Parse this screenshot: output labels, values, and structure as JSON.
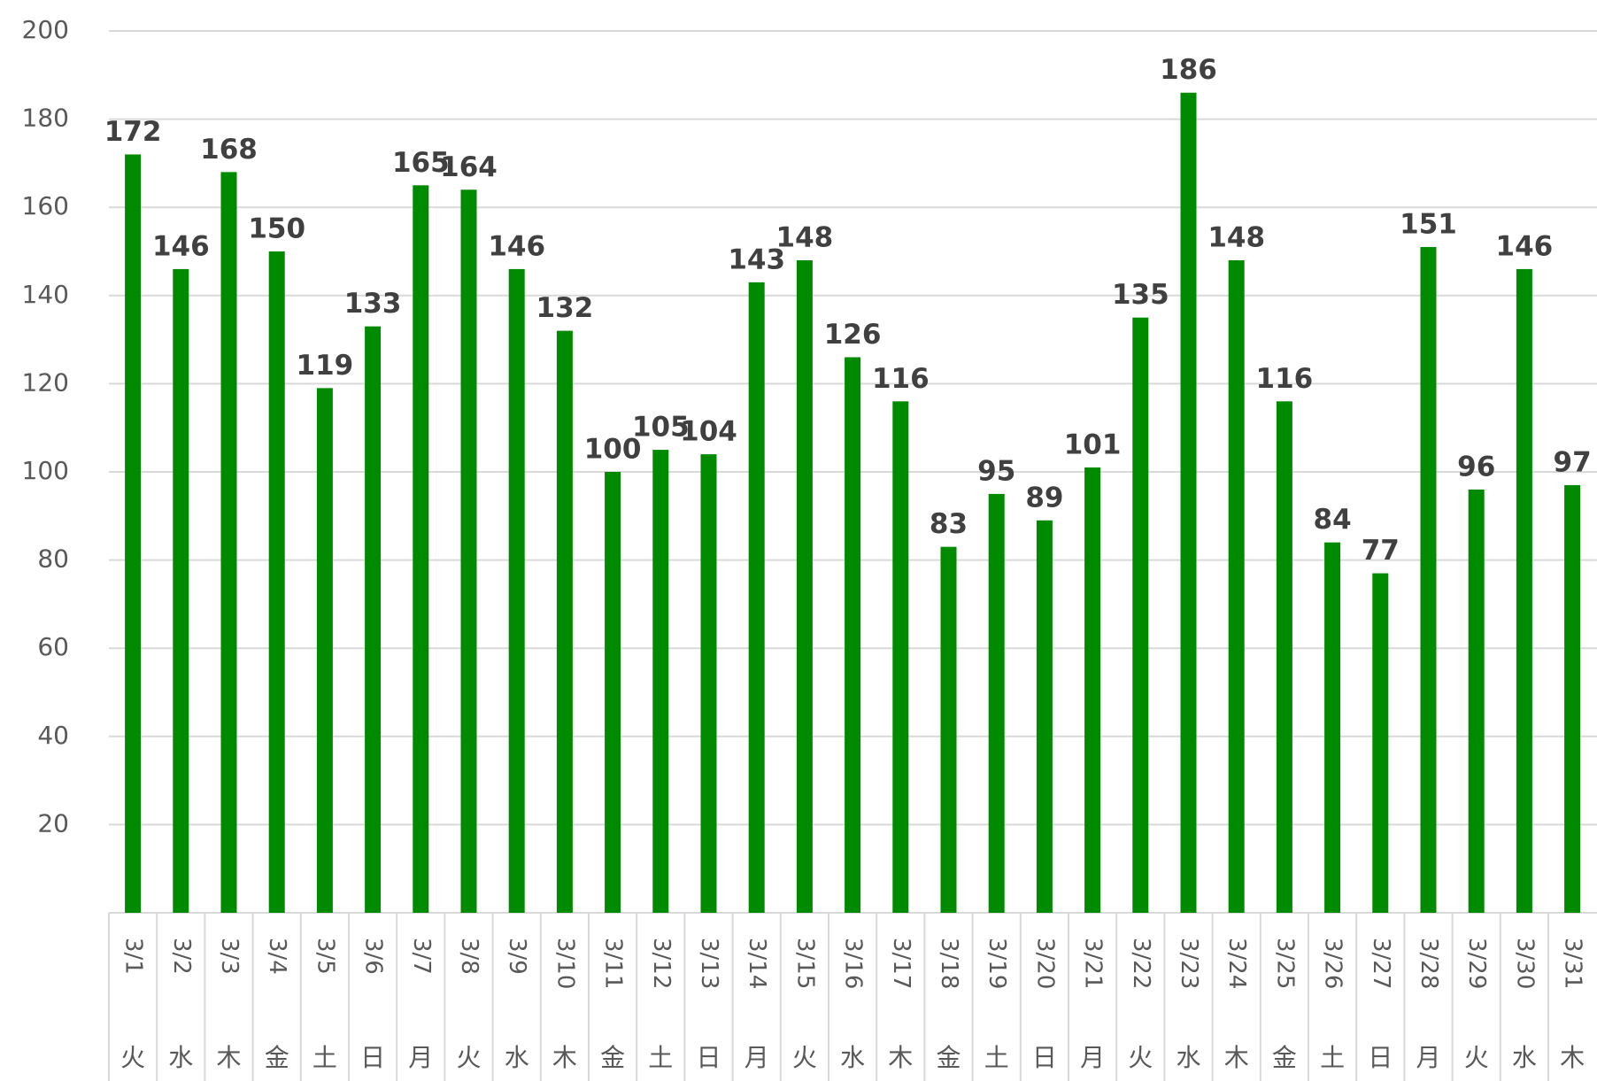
{
  "chart_data": {
    "type": "bar",
    "categories": [
      "3/1",
      "3/2",
      "3/3",
      "3/4",
      "3/5",
      "3/6",
      "3/7",
      "3/8",
      "3/9",
      "3/10",
      "3/11",
      "3/12",
      "3/13",
      "3/14",
      "3/15",
      "3/16",
      "3/17",
      "3/18",
      "3/19",
      "3/20",
      "3/21",
      "3/22",
      "3/23",
      "3/24",
      "3/25",
      "3/26",
      "3/27",
      "3/28",
      "3/29",
      "3/30",
      "3/31"
    ],
    "weekdays": [
      "火",
      "水",
      "木",
      "金",
      "土",
      "日",
      "月",
      "火",
      "水",
      "木",
      "金",
      "土",
      "日",
      "月",
      "火",
      "水",
      "木",
      "金",
      "土",
      "日",
      "月",
      "火",
      "水",
      "木",
      "金",
      "土",
      "日",
      "月",
      "火",
      "水",
      "木"
    ],
    "values": [
      172,
      146,
      168,
      150,
      119,
      133,
      165,
      164,
      146,
      132,
      100,
      105,
      104,
      143,
      148,
      126,
      116,
      83,
      95,
      89,
      101,
      135,
      186,
      148,
      116,
      84,
      77,
      151,
      96,
      146,
      97
    ],
    "color": "#008a00",
    "ylim": [
      0,
      200
    ],
    "yticks": [
      20,
      40,
      60,
      80,
      100,
      120,
      140,
      160,
      180,
      200
    ],
    "grid": true
  }
}
